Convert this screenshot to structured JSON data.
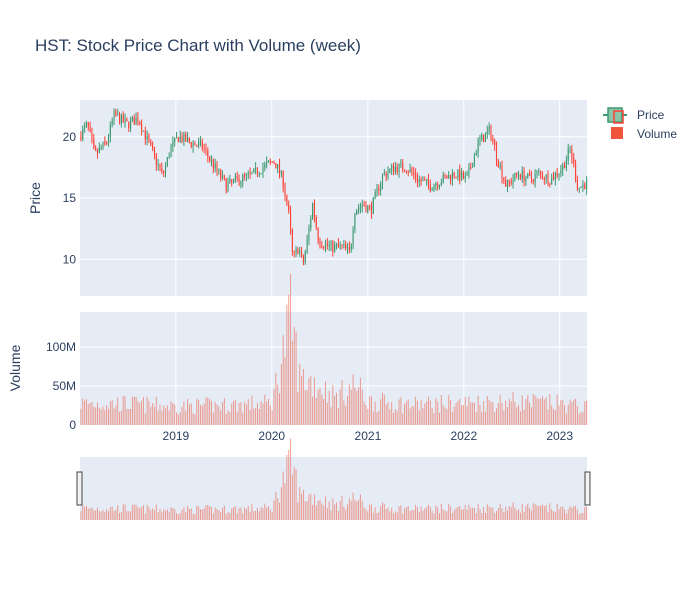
{
  "chart_data": {
    "type": "candlestick",
    "title": "HST: Stock Price Chart with Volume (week)",
    "legend": {
      "placement": "top-right",
      "entries": [
        "Price",
        "Volume"
      ]
    },
    "colors": {
      "increasing": "#3d9970",
      "decreasing": "#ff4136",
      "increasing_fill": "#8ac5a8",
      "volume_bar": "#ef553b",
      "plot_bg": "#e5ecf6",
      "grid": "#ffffff",
      "text": "#2a3f5f"
    },
    "x_range": [
      "2018-01-01",
      "2023-04-15"
    ],
    "x_ticks": [
      {
        "date": "2019-01-01",
        "label": "2019"
      },
      {
        "date": "2020-01-01",
        "label": "2020"
      },
      {
        "date": "2021-01-01",
        "label": "2021"
      },
      {
        "date": "2022-01-01",
        "label": "2022"
      },
      {
        "date": "2023-01-01",
        "label": "2023"
      }
    ],
    "price_axis": {
      "label": "Price",
      "range": [
        7,
        23
      ],
      "ticks": [
        10,
        15,
        20
      ]
    },
    "volume_axis": {
      "label": "Volume",
      "range": [
        0,
        145000000
      ],
      "ticks": [
        {
          "value": 0,
          "label": "0"
        },
        {
          "value": 50000000,
          "label": "50M"
        },
        {
          "value": 100000000,
          "label": "100M"
        }
      ]
    },
    "range_slider": {
      "shown": true
    },
    "price_anchors": [
      [
        "2018-01-01",
        20.0
      ],
      [
        "2018-02-01",
        21.0
      ],
      [
        "2018-03-01",
        18.5
      ],
      [
        "2018-04-15",
        19.5
      ],
      [
        "2018-05-15",
        21.8
      ],
      [
        "2018-07-01",
        21.0
      ],
      [
        "2018-08-15",
        21.5
      ],
      [
        "2018-10-01",
        19.0
      ],
      [
        "2018-11-15",
        16.8
      ],
      [
        "2018-12-15",
        19.0
      ],
      [
        "2019-01-15",
        20.0
      ],
      [
        "2019-03-01",
        19.5
      ],
      [
        "2019-04-15",
        19.2
      ],
      [
        "2019-06-01",
        17.5
      ],
      [
        "2019-07-15",
        16.0
      ],
      [
        "2019-09-01",
        16.5
      ],
      [
        "2019-10-15",
        16.8
      ],
      [
        "2019-12-01",
        17.5
      ],
      [
        "2020-01-15",
        18.0
      ],
      [
        "2020-02-15",
        16.5
      ],
      [
        "2020-03-10",
        13.5
      ],
      [
        "2020-03-25",
        10.0
      ],
      [
        "2020-04-15",
        11.0
      ],
      [
        "2020-05-01",
        9.5
      ],
      [
        "2020-05-15",
        11.0
      ],
      [
        "2020-06-08",
        14.5
      ],
      [
        "2020-07-01",
        11.5
      ],
      [
        "2020-08-15",
        11.0
      ],
      [
        "2020-10-01",
        11.0
      ],
      [
        "2020-10-28",
        10.5
      ],
      [
        "2020-11-15",
        14.0
      ],
      [
        "2020-12-15",
        14.5
      ],
      [
        "2021-01-15",
        14.0
      ],
      [
        "2021-03-01",
        16.8
      ],
      [
        "2021-04-15",
        17.5
      ],
      [
        "2021-06-01",
        17.5
      ],
      [
        "2021-07-15",
        16.5
      ],
      [
        "2021-09-01",
        16.0
      ],
      [
        "2021-10-15",
        16.5
      ],
      [
        "2021-12-01",
        17.0
      ],
      [
        "2022-01-15",
        16.5
      ],
      [
        "2022-03-01",
        19.5
      ],
      [
        "2022-04-15",
        20.5
      ],
      [
        "2022-05-15",
        18.0
      ],
      [
        "2022-06-15",
        16.0
      ],
      [
        "2022-08-01",
        17.0
      ],
      [
        "2022-09-15",
        16.5
      ],
      [
        "2022-10-15",
        17.0
      ],
      [
        "2022-12-01",
        16.5
      ],
      [
        "2023-01-15",
        17.5
      ],
      [
        "2023-02-15",
        19.0
      ],
      [
        "2023-03-15",
        15.8
      ],
      [
        "2023-04-15",
        16.2
      ]
    ],
    "volume_anchors": [
      [
        "2018-01-01",
        28000000
      ],
      [
        "2018-07-01",
        27000000
      ],
      [
        "2019-01-01",
        24000000
      ],
      [
        "2019-07-01",
        25000000
      ],
      [
        "2020-01-01",
        28000000
      ],
      [
        "2020-03-15",
        140000000
      ],
      [
        "2020-04-15",
        60000000
      ],
      [
        "2020-06-08",
        55000000
      ],
      [
        "2020-09-01",
        35000000
      ],
      [
        "2020-11-15",
        52000000
      ],
      [
        "2021-01-01",
        30000000
      ],
      [
        "2021-07-01",
        26000000
      ],
      [
        "2022-01-01",
        28000000
      ],
      [
        "2022-07-01",
        30000000
      ],
      [
        "2023-01-01",
        27000000
      ],
      [
        "2023-04-15",
        22000000
      ]
    ]
  }
}
